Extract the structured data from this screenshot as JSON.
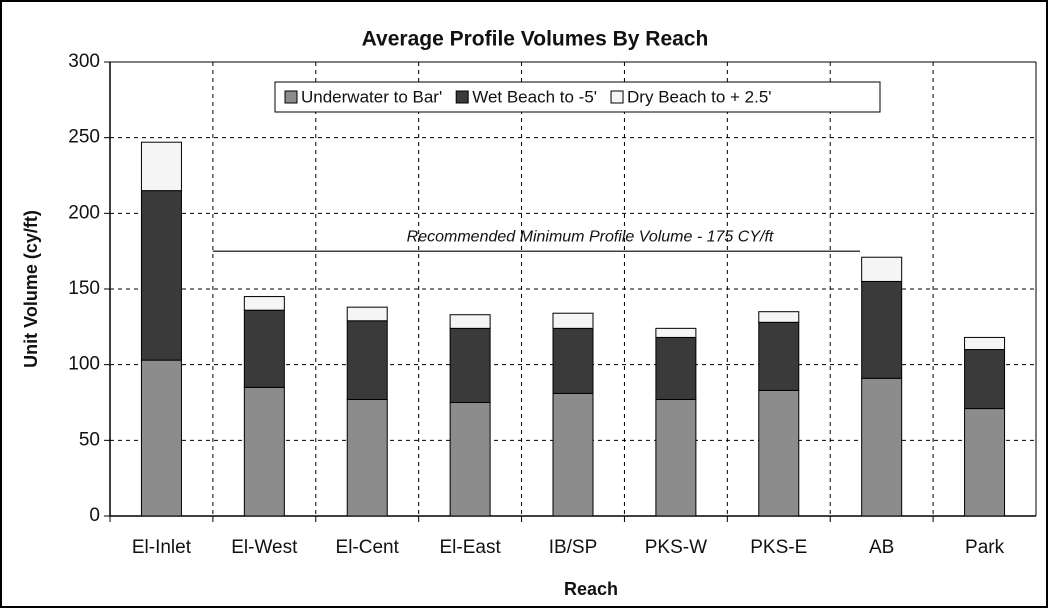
{
  "chart_data": {
    "type": "stacked-bar",
    "title": "Average Profile Volumes By Reach",
    "x_label": "Reach",
    "y_label": "Unit Volume (cy/ft)",
    "categories": [
      "El-Inlet",
      "El-West",
      "El-Cent",
      "El-East",
      "IB/SP",
      "PKS-W",
      "PKS-E",
      "AB",
      "Park"
    ],
    "series": [
      {
        "name": "Underwater to Bar'",
        "color": "#8c8c8c",
        "values": [
          103,
          85,
          77,
          75,
          81,
          77,
          83,
          91,
          71
        ]
      },
      {
        "name": "Wet Beach to -5'",
        "color": "#3a3a3a",
        "values": [
          112,
          51,
          52,
          49,
          43,
          41,
          45,
          64,
          39
        ]
      },
      {
        "name": "Dry Beach to + 2.5'",
        "color": "#f5f5f5",
        "values": [
          32,
          9,
          9,
          9,
          10,
          6,
          7,
          16,
          8
        ]
      }
    ],
    "ylim": [
      0,
      300
    ],
    "yticks": [
      0,
      50,
      100,
      150,
      200,
      250,
      300
    ],
    "grid": true,
    "legend_position": "top",
    "reference_line": {
      "value": 175,
      "label": "Recommended Minimum Profile Volume - 175 CY/ft"
    }
  }
}
